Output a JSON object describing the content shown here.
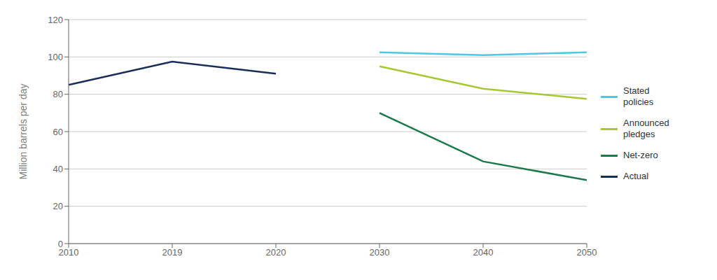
{
  "chart_data": {
    "type": "line",
    "categories": [
      "2010",
      "2019",
      "2020",
      "2030",
      "2040",
      "2050"
    ],
    "series": [
      {
        "name": "Stated\npolicies",
        "color": "#4dc8e8",
        "values": [
          null,
          null,
          null,
          102.5,
          101,
          102.5
        ]
      },
      {
        "name": "Announced\npledges",
        "color": "#a8c832",
        "values": [
          null,
          null,
          null,
          95,
          83,
          77.5
        ]
      },
      {
        "name": "Net-zero",
        "color": "#1a7a4a",
        "values": [
          null,
          null,
          null,
          70,
          44,
          34
        ]
      },
      {
        "name": "Actual",
        "color": "#1a2e5a",
        "values": [
          85,
          97.5,
          91,
          null,
          null,
          null
        ]
      }
    ],
    "y_label": "Million barrels per day",
    "ylim": [
      0,
      120
    ],
    "yticks": [
      0,
      20,
      40,
      60,
      80,
      100,
      120
    ],
    "grid": true,
    "legend": "right"
  }
}
